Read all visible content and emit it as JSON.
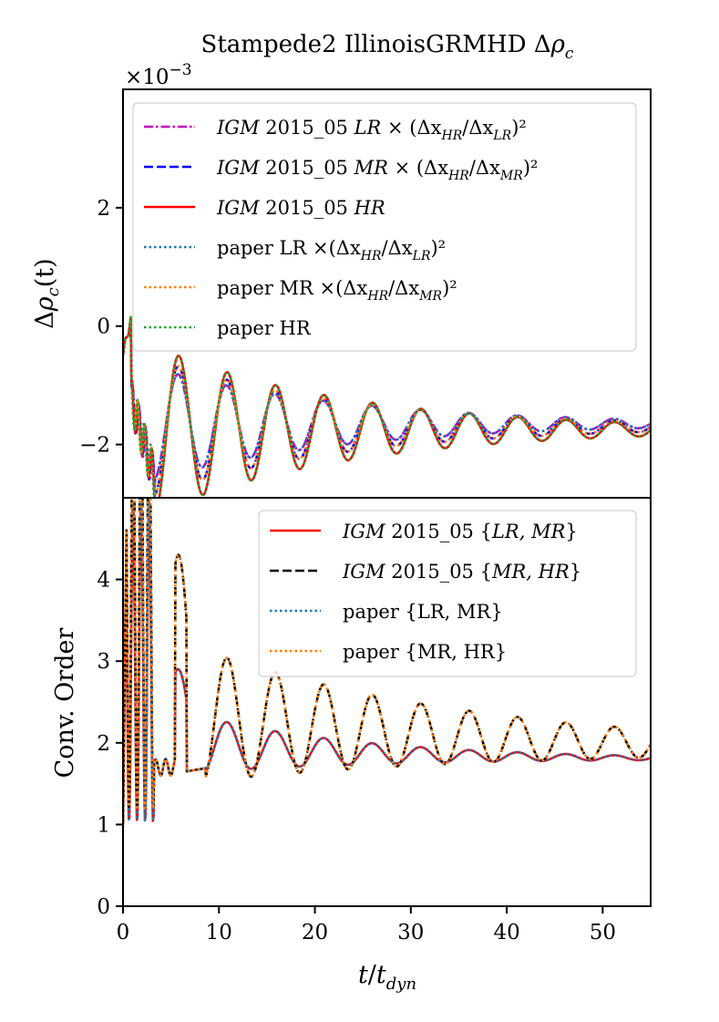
{
  "figure": {
    "title": "Stampede2 IllinoisGRMHD Δρ_c",
    "x_label": "t/t_dyn"
  },
  "chart_data": [
    {
      "type": "line",
      "title": "Stampede2 IllinoisGRMHD Δρ_c",
      "ylabel": "Δρ_c(t)",
      "xlabel": "",
      "y_scale_label": "×10⁻³",
      "xlim": [
        0,
        55
      ],
      "ylim": [
        -2.9,
        4.0
      ],
      "yticks": [
        -2,
        0,
        2
      ],
      "ytick_labels": [
        "−2",
        "0",
        "2"
      ],
      "legend_position": "top-right",
      "damping_tau": 20,
      "series": [
        {
          "name": "IGM 2015_05 LR ×(Δx_HR/Δx_LR)²",
          "color": "#bf00bf",
          "dash": "dashdot",
          "mean": -1.65,
          "amp": 0.9,
          "phase": 0.09
        },
        {
          "name": "IGM 2015_05 MR ×(Δx_HR/Δx_MR)²",
          "color": "#0000ff",
          "dash": "dashed",
          "mean": -1.7,
          "amp": 1.1,
          "phase": 0.05
        },
        {
          "name": "IGM 2015_05 HR",
          "color": "#ff0000",
          "dash": "solid",
          "mean": -1.75,
          "amp": 1.35,
          "phase": 0.0
        },
        {
          "name": "paper LR ×(Δx_HR/Δx_LR)²",
          "color": "#1f77b4",
          "dash": "dotted",
          "mean": -1.65,
          "amp": 0.9,
          "phase": 0.09
        },
        {
          "name": "paper MR ×(Δx_HR/Δx_MR)²",
          "color": "#ff7f0e",
          "dash": "dotted",
          "mean": -1.7,
          "amp": 1.1,
          "phase": 0.05
        },
        {
          "name": "paper HR",
          "color": "#2ca02c",
          "dash": "dotted",
          "mean": -1.75,
          "amp": 1.35,
          "phase": 0.0
        }
      ],
      "legend": [
        {
          "prefix": "IGM",
          "text": " 2015_05 ",
          "res": "LR",
          "tail": " × (Δx",
          "sub1": "HR",
          "mid": "/Δx",
          "sub2": "LR",
          "end": ")²",
          "color": "#bf00bf",
          "dash": "dashdot"
        },
        {
          "prefix": "IGM",
          "text": " 2015_05 ",
          "res": "MR",
          "tail": " × (Δx",
          "sub1": "HR",
          "mid": "/Δx",
          "sub2": "MR",
          "end": ")²",
          "color": "#0000ff",
          "dash": "dashed"
        },
        {
          "prefix": "IGM",
          "text": " 2015_05 ",
          "res": "HR",
          "tail": "",
          "sub1": "",
          "mid": "",
          "sub2": "",
          "end": "",
          "color": "#ff0000",
          "dash": "solid"
        },
        {
          "prefix": "",
          "text": "paper LR ",
          "res": "",
          "tail": "×(Δx",
          "sub1": "HR",
          "mid": "/Δx",
          "sub2": "LR",
          "end": ")²",
          "color": "#1f77b4",
          "dash": "dotted"
        },
        {
          "prefix": "",
          "text": "paper MR ",
          "res": "",
          "tail": "×(Δx",
          "sub1": "HR",
          "mid": "/Δx",
          "sub2": "MR",
          "end": ")²",
          "color": "#ff7f0e",
          "dash": "dotted"
        },
        {
          "prefix": "",
          "text": "paper HR",
          "res": "",
          "tail": "",
          "sub1": "",
          "mid": "",
          "sub2": "",
          "end": "",
          "color": "#2ca02c",
          "dash": "dotted"
        }
      ]
    },
    {
      "type": "line",
      "ylabel": "Conv. Order",
      "xlabel": "t/t_dyn",
      "xlim": [
        0,
        55
      ],
      "ylim": [
        0,
        5.0
      ],
      "xticks": [
        0,
        10,
        20,
        30,
        40,
        50
      ],
      "xtick_labels": [
        "0",
        "10",
        "20",
        "30",
        "40",
        "50"
      ],
      "yticks": [
        0,
        1,
        2,
        3,
        4
      ],
      "ytick_labels": [
        "0",
        "1",
        "2",
        "3",
        "4"
      ],
      "legend_position": "top-right",
      "series": [
        {
          "name": "IGM 2015_05 {LR, MR}",
          "color": "#ff0000",
          "dash": "solid",
          "base": 2.0,
          "amp": 0.6,
          "phase": 0.0
        },
        {
          "name": "IGM 2015_05 {MR, HR}",
          "color": "#000000",
          "dash": "dashed",
          "base": 2.15,
          "amp": 1.35,
          "phase": 0.0
        },
        {
          "name": "paper {LR, MR}",
          "color": "#1f77b4",
          "dash": "dotted",
          "base": 2.0,
          "amp": 0.6,
          "phase": 0.0
        },
        {
          "name": "paper {MR, HR}",
          "color": "#ff7f0e",
          "dash": "dotted",
          "base": 2.15,
          "amp": 1.35,
          "phase": 0.0
        }
      ],
      "legend": [
        {
          "prefix": "IGM",
          "text": " 2015_05 {",
          "res": "LR, MR",
          "end": "}",
          "color": "#ff0000",
          "dash": "solid"
        },
        {
          "prefix": "IGM",
          "text": " 2015_05 {",
          "res": "MR, HR",
          "end": "}",
          "color": "#000000",
          "dash": "dashed"
        },
        {
          "prefix": "",
          "text": "paper {LR, MR}",
          "res": "",
          "end": "",
          "color": "#1f77b4",
          "dash": "dotted"
        },
        {
          "prefix": "",
          "text": "paper {MR, HR}",
          "res": "",
          "end": "",
          "color": "#ff7f0e",
          "dash": "dotted"
        }
      ]
    }
  ]
}
